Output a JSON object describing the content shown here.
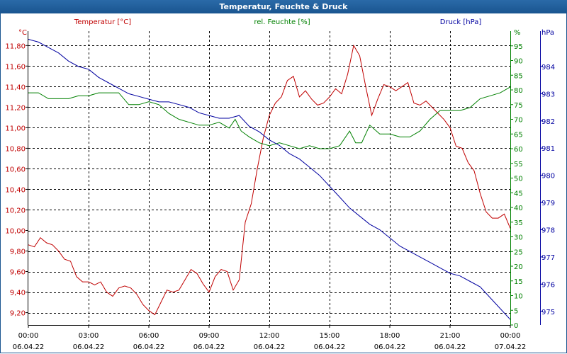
{
  "window": {
    "title": "Temperatur, Feuchte & Druck"
  },
  "chart_data": {
    "type": "line",
    "title": "Temperatur, Feuchte & Druck",
    "x_ticks": [
      {
        "hour": 0,
        "time": "00:00",
        "date": "06.04.22"
      },
      {
        "hour": 3,
        "time": "03:00",
        "date": "06.04.22"
      },
      {
        "hour": 6,
        "time": "06:00",
        "date": "06.04.22"
      },
      {
        "hour": 9,
        "time": "09:00",
        "date": "06.04.22"
      },
      {
        "hour": 12,
        "time": "12:00",
        "date": "06.04.22"
      },
      {
        "hour": 15,
        "time": "15:00",
        "date": "06.04.22"
      },
      {
        "hour": 18,
        "time": "18:00",
        "date": "06.04.22"
      },
      {
        "hour": 21,
        "time": "21:00",
        "date": "06.04.22"
      },
      {
        "hour": 24,
        "time": "00:00",
        "date": "07.04.22"
      }
    ],
    "xlim": [
      0,
      24
    ],
    "axes": {
      "temperature": {
        "label": "Temperatur [°C]",
        "unit": "°C",
        "color": "#c00000",
        "ylim": [
          9.08,
          11.94
        ],
        "ticks": [
          9.2,
          9.4,
          9.6,
          9.8,
          10.0,
          10.2,
          10.4,
          10.6,
          10.8,
          11.0,
          11.2,
          11.4,
          11.6,
          11.8
        ],
        "tick_labels": [
          "9,20",
          "9,40",
          "9,60",
          "9,80",
          "10,00",
          "10,20",
          "10,40",
          "10,60",
          "10,80",
          "11,00",
          "11,20",
          "11,40",
          "11,60",
          "11,80"
        ]
      },
      "humidity": {
        "label": "rel. Feuchte [%]",
        "unit": "%",
        "color": "#008000",
        "ylim": [
          0,
          100
        ],
        "ticks": [
          0,
          5,
          10,
          15,
          20,
          25,
          30,
          35,
          40,
          45,
          50,
          55,
          60,
          65,
          70,
          75,
          80,
          85,
          90,
          95
        ],
        "tick_labels": [
          "0",
          "5",
          "10",
          "15",
          "20",
          "25",
          "30",
          "35",
          "40",
          "45",
          "50",
          "55",
          "60",
          "65",
          "70",
          "75",
          "80",
          "85",
          "90",
          "95"
        ]
      },
      "pressure": {
        "label": "Druck [hPa]",
        "unit": "hPa",
        "color": "#0000a0",
        "ylim": [
          974.5,
          985.3
        ],
        "ticks": [
          975,
          976,
          977,
          978,
          979,
          980,
          981,
          982,
          983,
          984
        ],
        "tick_labels": [
          "975",
          "976",
          "977",
          "978",
          "979",
          "980",
          "981",
          "982",
          "983",
          "984"
        ]
      }
    },
    "series": [
      {
        "name": "Temperatur",
        "axis": "temperature",
        "color": "#c00000",
        "x": [
          0,
          0.3,
          0.6,
          0.9,
          1.2,
          1.5,
          1.8,
          2.1,
          2.4,
          2.7,
          3.0,
          3.3,
          3.6,
          3.9,
          4.2,
          4.5,
          4.8,
          5.1,
          5.4,
          5.7,
          6.0,
          6.3,
          6.6,
          6.9,
          7.2,
          7.5,
          7.8,
          8.1,
          8.4,
          8.7,
          9.0,
          9.3,
          9.6,
          9.9,
          10.2,
          10.5,
          10.8,
          11.1,
          11.4,
          11.7,
          12.0,
          12.3,
          12.6,
          12.9,
          13.2,
          13.5,
          13.8,
          14.1,
          14.4,
          14.7,
          15.0,
          15.3,
          15.6,
          15.9,
          16.2,
          16.5,
          16.8,
          17.1,
          17.4,
          17.7,
          18.0,
          18.3,
          18.6,
          18.9,
          19.2,
          19.5,
          19.8,
          20.1,
          20.4,
          20.7,
          21.0,
          21.3,
          21.6,
          21.9,
          22.2,
          22.5,
          22.8,
          23.1,
          23.4,
          23.7,
          24.0
        ],
        "values": [
          9.86,
          9.84,
          9.93,
          9.88,
          9.86,
          9.8,
          9.72,
          9.7,
          9.55,
          9.5,
          9.5,
          9.47,
          9.5,
          9.4,
          9.36,
          9.44,
          9.46,
          9.44,
          9.38,
          9.28,
          9.22,
          9.18,
          9.3,
          9.42,
          9.4,
          9.42,
          9.52,
          9.62,
          9.58,
          9.48,
          9.4,
          9.55,
          9.62,
          9.6,
          9.42,
          9.52,
          10.08,
          10.26,
          10.6,
          10.9,
          11.12,
          11.24,
          11.3,
          11.46,
          11.5,
          11.3,
          11.36,
          11.28,
          11.22,
          11.24,
          11.3,
          11.38,
          11.33,
          11.52,
          11.8,
          11.7,
          11.4,
          11.12,
          11.28,
          11.42,
          11.4,
          11.36,
          11.4,
          11.44,
          11.24,
          11.22,
          11.26,
          11.2,
          11.14,
          11.08,
          11.0,
          10.82,
          10.8,
          10.66,
          10.58,
          10.36,
          10.18,
          10.12,
          10.12,
          10.16,
          10.02
        ]
      },
      {
        "name": "rel. Feuchte",
        "axis": "humidity",
        "color": "#008000",
        "x": [
          0,
          0.5,
          1.0,
          1.5,
          2.0,
          2.5,
          3.0,
          3.5,
          4.0,
          4.5,
          5.0,
          5.5,
          6.0,
          6.5,
          7.0,
          7.5,
          8.0,
          8.5,
          9.0,
          9.5,
          10.0,
          10.3,
          10.6,
          11.0,
          11.5,
          12.0,
          12.5,
          13.0,
          13.5,
          14.0,
          14.5,
          15.0,
          15.5,
          16.0,
          16.3,
          16.6,
          17.0,
          17.5,
          18.0,
          18.5,
          19.0,
          19.5,
          20.0,
          20.5,
          21.0,
          21.5,
          22.0,
          22.5,
          23.0,
          23.5,
          24.0
        ],
        "values": [
          79,
          79,
          77,
          77,
          77,
          78,
          78,
          79,
          79,
          79,
          75,
          75,
          76,
          75,
          72,
          70,
          69,
          68,
          68,
          69,
          67,
          70,
          66,
          64,
          62,
          61,
          62,
          61,
          60,
          61,
          60,
          60,
          61,
          66,
          62,
          62,
          68,
          65,
          65,
          64,
          64,
          66,
          70,
          73,
          73,
          73,
          74,
          77,
          78,
          79,
          81
        ]
      },
      {
        "name": "Druck",
        "axis": "pressure",
        "color": "#0000a0",
        "x": [
          0,
          0.5,
          1.0,
          1.5,
          2.0,
          2.5,
          3.0,
          3.5,
          4.0,
          4.5,
          5.0,
          5.5,
          6.0,
          6.5,
          7.0,
          7.5,
          8.0,
          8.5,
          9.0,
          9.5,
          10.0,
          10.5,
          11.0,
          11.5,
          12.0,
          12.5,
          13.0,
          13.5,
          14.0,
          14.5,
          15.0,
          15.5,
          16.0,
          16.5,
          17.0,
          17.5,
          18.0,
          18.5,
          19.0,
          19.5,
          20.0,
          20.5,
          21.0,
          21.5,
          22.0,
          22.5,
          23.0,
          23.5,
          24.0
        ],
        "values": [
          985.0,
          984.9,
          984.7,
          984.5,
          984.2,
          984.0,
          983.9,
          983.6,
          983.4,
          983.2,
          983.0,
          982.9,
          982.8,
          982.7,
          982.7,
          982.6,
          982.5,
          982.3,
          982.2,
          982.1,
          982.1,
          982.2,
          981.8,
          981.6,
          981.3,
          981.1,
          980.8,
          980.6,
          980.3,
          980.0,
          979.6,
          979.2,
          978.8,
          978.5,
          978.2,
          978.0,
          977.7,
          977.4,
          977.2,
          977.0,
          976.8,
          976.6,
          976.4,
          976.3,
          976.1,
          975.9,
          975.5,
          975.1,
          974.7
        ]
      }
    ]
  }
}
